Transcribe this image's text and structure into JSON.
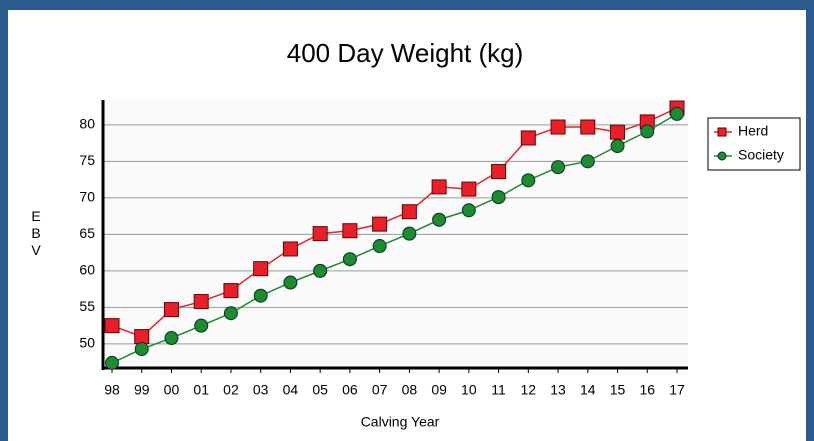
{
  "chart_data": {
    "type": "line",
    "title": "400 Day Weight (kg)",
    "x_label": "Calving Year",
    "y_label": "EBV",
    "categories": [
      "98",
      "99",
      "00",
      "01",
      "02",
      "03",
      "04",
      "05",
      "06",
      "07",
      "08",
      "09",
      "10",
      "11",
      "12",
      "13",
      "14",
      "15",
      "16",
      "17"
    ],
    "series": [
      {
        "name": "Herd",
        "color": "#e8202a",
        "marker": "square",
        "values": [
          52.5,
          51,
          54.7,
          55.8,
          57.3,
          60.3,
          63,
          65.1,
          65.5,
          66.4,
          68.1,
          71.5,
          71.2,
          73.6,
          78.2,
          79.7,
          79.7,
          79,
          80.4,
          82.3
        ]
      },
      {
        "name": "Society",
        "color": "#1f8a2e",
        "marker": "circle",
        "values": [
          47.4,
          49.3,
          50.8,
          52.5,
          54.2,
          56.6,
          58.4,
          60,
          61.6,
          63.4,
          65.1,
          67,
          68.3,
          70.1,
          72.4,
          74.2,
          75,
          77.1,
          79.1,
          81.5
        ]
      }
    ],
    "ylim": [
      46.7,
      83.4
    ],
    "yticks": [
      50,
      55,
      60,
      65,
      70,
      75,
      80
    ],
    "grid": true,
    "legend": "right"
  }
}
